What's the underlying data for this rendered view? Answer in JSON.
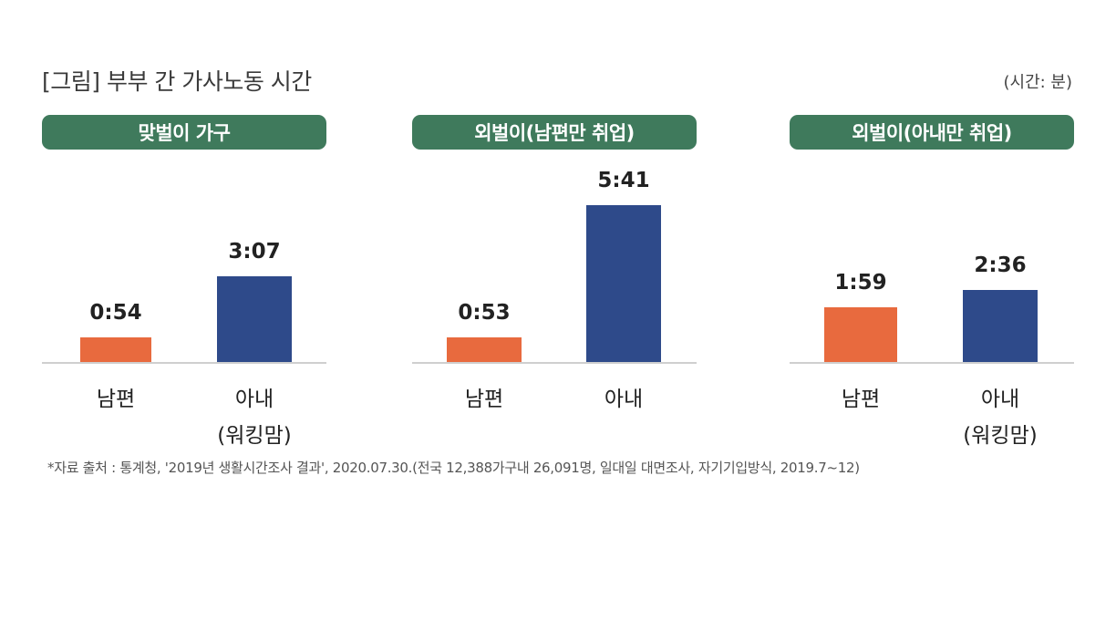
{
  "title": "[그림] 부부 간 가사노동 시간",
  "unit_label": "(시간: 분)",
  "footnote": "*자료 출처 : 통계청, '2019년 생활시간조사 결과', 2020.07.30.(전국 12,388가구내 26,091명, 일대일 대면조사, 자기기입방식, 2019.7~12)",
  "colors": {
    "panel_header": "#3f7a5c",
    "husband": "#e86a3e",
    "wife": "#2e4a8a"
  },
  "chart_data": [
    {
      "type": "bar",
      "title": "맞벌이 가구",
      "categories": [
        "남편",
        "아내\n(워킹맘)"
      ],
      "values": [
        54,
        187
      ],
      "value_labels": [
        "0:54",
        "3:07"
      ],
      "ylabel": "",
      "ylim": [
        0,
        360
      ]
    },
    {
      "type": "bar",
      "title": "외벌이(남편만 취업)",
      "categories": [
        "남편",
        "아내"
      ],
      "values": [
        53,
        341
      ],
      "value_labels": [
        "0:53",
        "5:41"
      ],
      "ylabel": "",
      "ylim": [
        0,
        360
      ]
    },
    {
      "type": "bar",
      "title": "외벌이(아내만 취업)",
      "categories": [
        "남편",
        "아내\n(워킹맘)"
      ],
      "values": [
        119,
        156
      ],
      "value_labels": [
        "1:59",
        "2:36"
      ],
      "ylabel": "",
      "ylim": [
        0,
        360
      ]
    }
  ]
}
